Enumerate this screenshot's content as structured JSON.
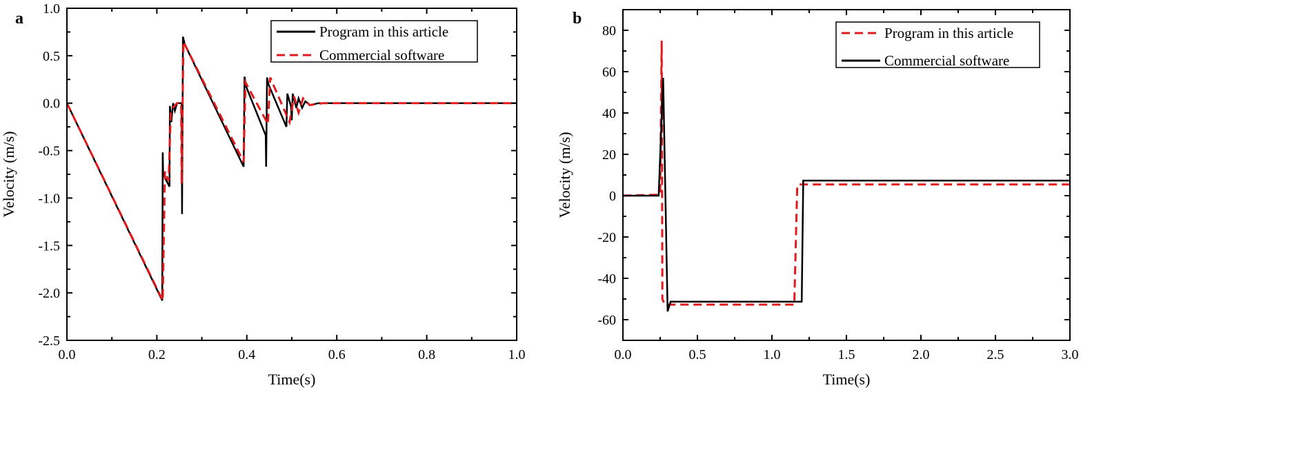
{
  "chart_data": [
    {
      "panel_label": "a",
      "type": "line",
      "xlabel": "Time(s)",
      "ylabel": "Velocity (m/s)",
      "xlim": [
        0,
        1.0
      ],
      "ylim": [
        -2.5,
        1.0
      ],
      "xticks": [
        "0.0",
        "0.2",
        "0.4",
        "0.6",
        "0.8",
        "1.0"
      ],
      "yticks": [
        "1.0",
        "0.5",
        "0.0",
        "-0.5",
        "-1.0",
        "-1.5",
        "-2.0",
        "-2.5"
      ],
      "grid": false,
      "legend_position": "top-right",
      "series": [
        {
          "name": "Program in this article",
          "color": "#000000",
          "style": "solid",
          "x": [
            0,
            0.212,
            0.213,
            0.214,
            0.228,
            0.229,
            0.232,
            0.236,
            0.24,
            0.245,
            0.255,
            0.256,
            0.258,
            0.262,
            0.393,
            0.395,
            0.398,
            0.442,
            0.443,
            0.445,
            0.448,
            0.488,
            0.49,
            0.498,
            0.5,
            0.502,
            0.51,
            0.515,
            0.523,
            0.53,
            0.54,
            0.56,
            1.0
          ],
          "y": [
            0,
            -2.08,
            -0.52,
            -0.75,
            -0.88,
            -0.03,
            -0.2,
            0.0,
            -0.08,
            0.0,
            0.0,
            -1.17,
            0.7,
            0.62,
            -0.67,
            0.28,
            0.18,
            -0.34,
            -0.67,
            0.27,
            0.2,
            -0.25,
            0.1,
            -0.03,
            -0.18,
            0.1,
            -0.05,
            0.05,
            -0.05,
            0.02,
            -0.02,
            0.0,
            0.0
          ]
        },
        {
          "name": "Commercial software",
          "color": "#e31a1c",
          "style": "dashed",
          "x": [
            0,
            0.213,
            0.218,
            0.226,
            0.231,
            0.235,
            0.245,
            0.254,
            0.255,
            0.259,
            0.262,
            0.393,
            0.397,
            0.447,
            0.452,
            0.495,
            0.505,
            0.515,
            0.525,
            0.54,
            0.57,
            1.0
          ],
          "y": [
            0,
            -2.08,
            -0.72,
            -0.82,
            -0.1,
            -0.05,
            0.0,
            0.0,
            -0.85,
            0.65,
            0.62,
            -0.62,
            0.22,
            -0.22,
            0.27,
            -0.2,
            0.07,
            -0.1,
            0.05,
            -0.02,
            0.0,
            0.0
          ]
        }
      ]
    },
    {
      "panel_label": "b",
      "type": "line",
      "xlabel": "Time(s)",
      "ylabel": "Velocity (m/s)",
      "xlim": [
        0,
        3.0
      ],
      "ylim": [
        -70,
        90
      ],
      "xticks": [
        "0.0",
        "0.5",
        "1.0",
        "1.5",
        "2.0",
        "2.5",
        "3.0"
      ],
      "yticks": [
        "80",
        "60",
        "40",
        "20",
        "0",
        "-20",
        "-40",
        "-60"
      ],
      "grid": false,
      "legend_position": "top-right",
      "series": [
        {
          "name": "Program in this article",
          "color": "#e31a1c",
          "style": "dashed",
          "x": [
            0,
            0.25,
            0.26,
            0.265,
            0.28,
            1.15,
            1.17,
            1.19,
            3.0
          ],
          "y": [
            0,
            0.5,
            75,
            -50,
            -52.7,
            -52.7,
            5,
            5.4,
            5.4
          ]
        },
        {
          "name": "Commercial software",
          "color": "#000000",
          "style": "solid",
          "x": [
            0,
            0.24,
            0.27,
            0.3,
            0.32,
            1.2,
            1.21,
            3.0
          ],
          "y": [
            0,
            0,
            57,
            -56,
            -51.3,
            -51.3,
            7.3,
            7.3
          ]
        }
      ]
    }
  ]
}
